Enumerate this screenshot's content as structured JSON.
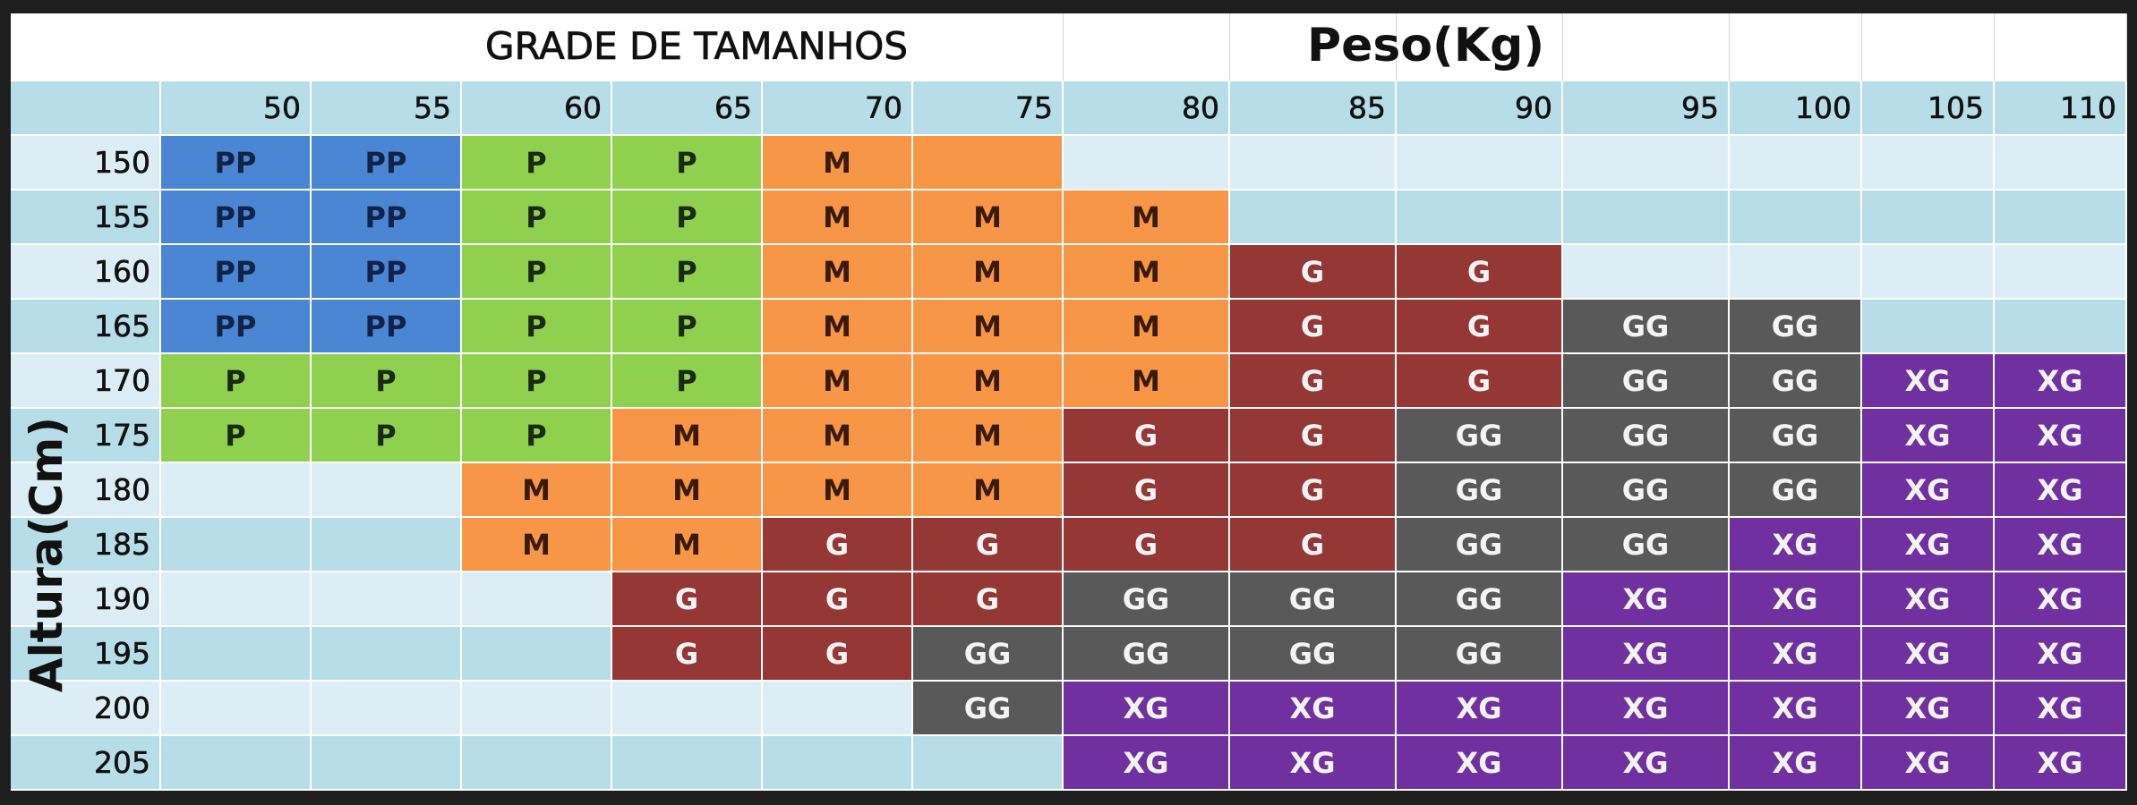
{
  "title": "GRADE DE TAMANHOS",
  "weight_label": "Peso(Kg)",
  "height_label": "Altura(Cm)",
  "columns": [
    50,
    55,
    60,
    65,
    70,
    75,
    80,
    85,
    90,
    95,
    100,
    105,
    110
  ],
  "palette": {
    "PP": "#4a86d4",
    "P": "#8fd14f",
    "M": "#f79646",
    "G": "#953735",
    "GG": "#595959",
    "XG": "#7030a0"
  },
  "blank_fills": [
    {
      "row": 0,
      "col": 5,
      "color": "#f79646"
    }
  ],
  "rows": [
    {
      "height": 150,
      "cells": [
        "PP",
        "PP",
        "P",
        "P",
        "M",
        null,
        null,
        null,
        null,
        null,
        null,
        null,
        null
      ]
    },
    {
      "height": 155,
      "cells": [
        "PP",
        "PP",
        "P",
        "P",
        "M",
        "M",
        "M",
        null,
        null,
        null,
        null,
        null,
        null
      ]
    },
    {
      "height": 160,
      "cells": [
        "PP",
        "PP",
        "P",
        "P",
        "M",
        "M",
        "M",
        "G",
        "G",
        null,
        null,
        null,
        null
      ]
    },
    {
      "height": 165,
      "cells": [
        "PP",
        "PP",
        "P",
        "P",
        "M",
        "M",
        "M",
        "G",
        "G",
        "GG",
        "GG",
        null,
        null
      ]
    },
    {
      "height": 170,
      "cells": [
        "P",
        "P",
        "P",
        "P",
        "M",
        "M",
        "M",
        "G",
        "G",
        "GG",
        "GG",
        "XG",
        "XG"
      ]
    },
    {
      "height": 175,
      "cells": [
        "P",
        "P",
        "P",
        "M",
        "M",
        "M",
        "G",
        "G",
        "GG",
        "GG",
        "GG",
        "XG",
        "XG"
      ]
    },
    {
      "height": 180,
      "cells": [
        null,
        null,
        "M",
        "M",
        "M",
        "M",
        "G",
        "G",
        "GG",
        "GG",
        "GG",
        "XG",
        "XG"
      ]
    },
    {
      "height": 185,
      "cells": [
        null,
        null,
        "M",
        "M",
        "G",
        "G",
        "G",
        "G",
        "GG",
        "GG",
        "XG",
        "XG",
        "XG"
      ]
    },
    {
      "height": 190,
      "cells": [
        null,
        null,
        null,
        "G",
        "G",
        "G",
        "GG",
        "GG",
        "GG",
        "XG",
        "XG",
        "XG",
        "XG"
      ]
    },
    {
      "height": 195,
      "cells": [
        null,
        null,
        null,
        "G",
        "G",
        "GG",
        "GG",
        "GG",
        "GG",
        "XG",
        "XG",
        "XG",
        "XG"
      ]
    },
    {
      "height": 200,
      "cells": [
        null,
        null,
        null,
        null,
        null,
        "GG",
        "XG",
        "XG",
        "XG",
        "XG",
        "XG",
        "XG",
        "XG"
      ]
    },
    {
      "height": 205,
      "cells": [
        null,
        null,
        null,
        null,
        null,
        null,
        "XG",
        "XG",
        "XG",
        "XG",
        "XG",
        "XG",
        "XG"
      ]
    }
  ]
}
